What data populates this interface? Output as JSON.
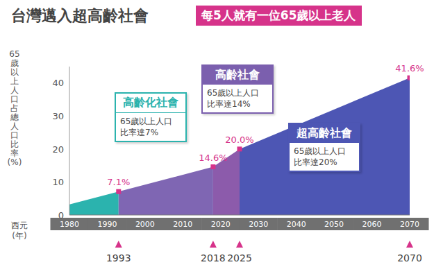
{
  "chart_data": {
    "type": "area",
    "title": "台灣邁入超高齡社會",
    "subtitle": "每5人就有一位65歲以上老人",
    "x_label": "西元(年)",
    "y_label": "65歲以上人口占總人口比率(%)",
    "x": [
      1980,
      1993,
      2018,
      2025,
      2070
    ],
    "values": [
      3.2,
      7.1,
      14.6,
      20.0,
      41.6
    ],
    "value_labels": [
      null,
      "7.1%",
      "14.6%",
      "20.0%",
      "41.6%"
    ],
    "data_labels": true,
    "marker": "square",
    "color": "#d6338a",
    "colors": [
      "#2bb3ae",
      "#7f66b3",
      "#8c5bab",
      "#4d56b4"
    ],
    "xlim": [
      1980,
      2070
    ],
    "xticks": [
      1980,
      1990,
      2000,
      2010,
      2020,
      2030,
      2040,
      2050,
      2060,
      2070
    ],
    "ylim": [
      0,
      45
    ],
    "yticks": [
      0,
      10,
      20,
      30,
      40
    ],
    "grid": false,
    "marked_years": [
      1993,
      2018,
      2025,
      2070
    ],
    "annotations": [
      {
        "title": "高齡化社會",
        "lines": [
          "65歲以上人口",
          "比率達7%"
        ],
        "color": "#2bb3ae"
      },
      {
        "title": "高齡社會",
        "lines": [
          "65歲以上人口",
          "比率達14%"
        ],
        "color": "#7b5fae"
      },
      {
        "title": "超高齡社會",
        "lines": [
          "65歲以上人口",
          "比率達20%"
        ],
        "color": "#4d56b4"
      }
    ]
  }
}
